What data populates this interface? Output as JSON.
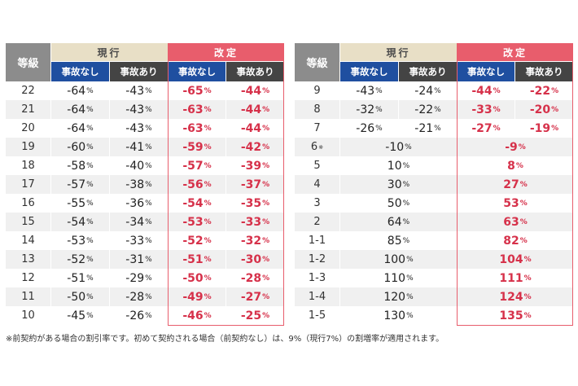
{
  "headers": {
    "grade": "等級",
    "current": "現行",
    "revised": "改定",
    "no_accident": "事故なし",
    "accident": "事故あり"
  },
  "left_rows": [
    {
      "grade": "22",
      "cur_no": "-64",
      "cur_acc": "-43",
      "rev_no": "-65",
      "rev_acc": "-44"
    },
    {
      "grade": "21",
      "cur_no": "-64",
      "cur_acc": "-43",
      "rev_no": "-63",
      "rev_acc": "-44"
    },
    {
      "grade": "20",
      "cur_no": "-64",
      "cur_acc": "-43",
      "rev_no": "-63",
      "rev_acc": "-44"
    },
    {
      "grade": "19",
      "cur_no": "-60",
      "cur_acc": "-41",
      "rev_no": "-59",
      "rev_acc": "-42"
    },
    {
      "grade": "18",
      "cur_no": "-58",
      "cur_acc": "-40",
      "rev_no": "-57",
      "rev_acc": "-39"
    },
    {
      "grade": "17",
      "cur_no": "-57",
      "cur_acc": "-38",
      "rev_no": "-56",
      "rev_acc": "-37"
    },
    {
      "grade": "16",
      "cur_no": "-55",
      "cur_acc": "-36",
      "rev_no": "-54",
      "rev_acc": "-35"
    },
    {
      "grade": "15",
      "cur_no": "-54",
      "cur_acc": "-34",
      "rev_no": "-53",
      "rev_acc": "-33"
    },
    {
      "grade": "14",
      "cur_no": "-53",
      "cur_acc": "-33",
      "rev_no": "-52",
      "rev_acc": "-32"
    },
    {
      "grade": "13",
      "cur_no": "-52",
      "cur_acc": "-31",
      "rev_no": "-51",
      "rev_acc": "-30"
    },
    {
      "grade": "12",
      "cur_no": "-51",
      "cur_acc": "-29",
      "rev_no": "-50",
      "rev_acc": "-28"
    },
    {
      "grade": "11",
      "cur_no": "-50",
      "cur_acc": "-28",
      "rev_no": "-49",
      "rev_acc": "-27"
    },
    {
      "grade": "10",
      "cur_no": "-45",
      "cur_acc": "-26",
      "rev_no": "-46",
      "rev_acc": "-25"
    }
  ],
  "right_rows": [
    {
      "grade": "9",
      "cur_no": "-43",
      "cur_acc": "-24",
      "rev_no": "-44",
      "rev_acc": "-22"
    },
    {
      "grade": "8",
      "cur_no": "-32",
      "cur_acc": "-22",
      "rev_no": "-33",
      "rev_acc": "-20"
    },
    {
      "grade": "7",
      "cur_no": "-26",
      "cur_acc": "-21",
      "rev_no": "-27",
      "rev_acc": "-19"
    },
    {
      "grade": "6",
      "mark": "※",
      "cur": "-10",
      "rev": "-9"
    },
    {
      "grade": "5",
      "cur": "10",
      "rev": "8"
    },
    {
      "grade": "4",
      "cur": "30",
      "rev": "27"
    },
    {
      "grade": "3",
      "cur": "50",
      "rev": "53"
    },
    {
      "grade": "2",
      "cur": "64",
      "rev": "63"
    },
    {
      "grade": "1-1",
      "cur": "85",
      "rev": "82"
    },
    {
      "grade": "1-2",
      "cur": "100",
      "rev": "104"
    },
    {
      "grade": "1-3",
      "cur": "110",
      "rev": "111"
    },
    {
      "grade": "1-4",
      "cur": "120",
      "rev": "124"
    },
    {
      "grade": "1-5",
      "cur": "130",
      "rev": "135"
    }
  ],
  "unit": "%",
  "footnote": "※前契約がある場合の割引率です。初めて契約される場合（前契約なし）は、9%（現行7%）の割増率が適用されます。"
}
